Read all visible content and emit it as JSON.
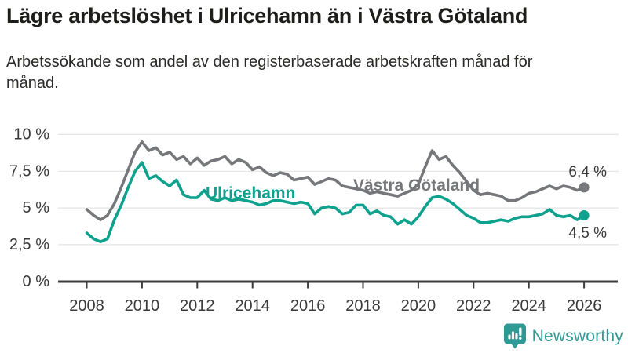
{
  "header": {
    "title": "Lägre arbetslöshet i Ulricehamn än i Västra Götaland",
    "subtitle": "Arbetssökande som andel av den registerbaserade arbetskraften månad för månad."
  },
  "chart_data": {
    "type": "line",
    "title": "Lägre arbetslöshet i Ulricehamn än i Västra Götaland",
    "subtitle": "Arbetssökande som andel av den registerbaserade arbetskraften månad för månad.",
    "xlabel": "",
    "ylabel": "",
    "xlim": [
      2008,
      2026.3
    ],
    "ylim": [
      0,
      10
    ],
    "grid": "horizontal",
    "legend_position": "inline-labels-on-lines",
    "x_start": 2008.0,
    "x_step": 0.25,
    "x_unit": "year (quarterly sampling of the monthly series)",
    "xtick_labels": [
      "2008",
      "2010",
      "2012",
      "2014",
      "2016",
      "2018",
      "2020",
      "2022",
      "2024",
      "2026"
    ],
    "ytick_values": [
      10,
      7.5,
      5,
      2.5,
      0
    ],
    "ytick_labels": [
      "10 %",
      "7,5 %",
      "5 %",
      "2,5 %",
      "0 %"
    ],
    "series": [
      {
        "name": "Ulricehamn",
        "color": "#0da18e",
        "end_label": "4,5 %",
        "end_value": 4.5,
        "values": [
          3.3,
          2.9,
          2.7,
          2.9,
          4.2,
          5.2,
          6.4,
          7.5,
          8.1,
          7.0,
          7.2,
          6.8,
          6.5,
          6.9,
          5.9,
          5.7,
          5.7,
          6.2,
          5.6,
          5.5,
          5.7,
          5.5,
          5.6,
          5.5,
          5.4,
          5.2,
          5.3,
          5.5,
          5.5,
          5.4,
          5.3,
          5.4,
          5.3,
          4.6,
          5.0,
          5.1,
          5.0,
          4.6,
          4.7,
          5.2,
          5.2,
          4.6,
          4.8,
          4.5,
          4.4,
          3.9,
          4.2,
          3.9,
          4.4,
          5.1,
          5.7,
          5.8,
          5.6,
          5.3,
          4.9,
          4.5,
          4.3,
          4.0,
          4.0,
          4.1,
          4.2,
          4.1,
          4.3,
          4.4,
          4.4,
          4.5,
          4.6,
          4.9,
          4.5,
          4.4,
          4.5,
          4.2,
          4.5
        ]
      },
      {
        "name": "Västra Götaland",
        "color": "#76777a",
        "end_label": "6,4 %",
        "end_value": 6.4,
        "values": [
          4.9,
          4.5,
          4.2,
          4.5,
          5.3,
          6.4,
          7.6,
          8.8,
          9.5,
          8.9,
          9.1,
          8.6,
          8.8,
          8.3,
          8.5,
          8.0,
          8.4,
          7.9,
          8.2,
          8.3,
          8.5,
          8.0,
          8.3,
          8.1,
          7.6,
          7.8,
          7.4,
          7.2,
          7.4,
          7.3,
          6.9,
          7.0,
          7.1,
          6.6,
          6.8,
          7.0,
          6.9,
          6.5,
          6.4,
          6.3,
          6.2,
          6.0,
          6.1,
          6.0,
          5.9,
          5.8,
          6.0,
          6.2,
          6.6,
          7.8,
          8.9,
          8.3,
          8.5,
          7.9,
          7.4,
          6.8,
          6.2,
          5.9,
          6.0,
          5.9,
          5.8,
          5.5,
          5.5,
          5.7,
          6.0,
          6.1,
          6.3,
          6.5,
          6.3,
          6.5,
          6.4,
          6.2,
          6.4
        ]
      }
    ]
  },
  "footer": {
    "brand": "Newsworthy",
    "brand_color": "#2f9a94"
  }
}
